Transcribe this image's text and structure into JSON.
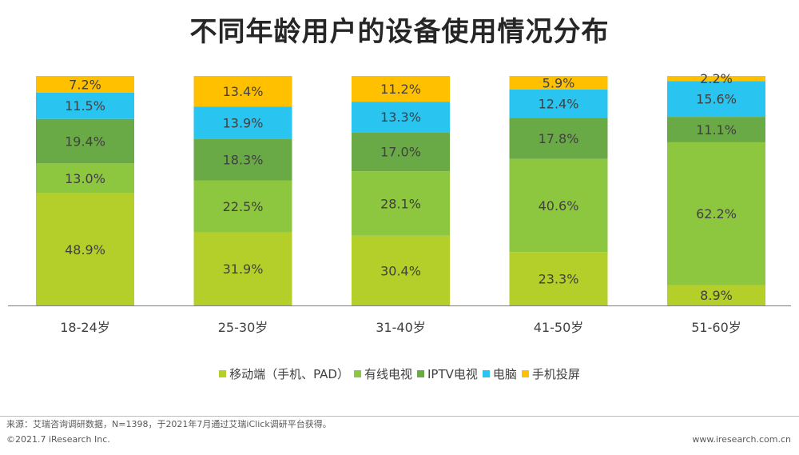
{
  "title": "不同年龄用户的设备使用情况分布",
  "chart_data": {
    "type": "bar",
    "stacked": true,
    "percent": true,
    "categories": [
      "18-24岁",
      "25-30岁",
      "31-40岁",
      "41-50岁",
      "51-60岁"
    ],
    "series": [
      {
        "name": "移动端（手机、PAD）",
        "color": "#b5cf2a",
        "values": [
          48.9,
          31.9,
          30.4,
          23.3,
          8.9
        ]
      },
      {
        "name": "有线电视",
        "color": "#8dc63f",
        "values": [
          13.0,
          22.5,
          28.1,
          40.6,
          62.2
        ]
      },
      {
        "name": "IPTV电视",
        "color": "#6aaa46",
        "values": [
          19.4,
          18.3,
          17.0,
          17.8,
          11.1
        ]
      },
      {
        "name": "电脑",
        "color": "#29c4ef",
        "values": [
          11.5,
          13.9,
          13.3,
          12.4,
          15.6
        ]
      },
      {
        "name": "手机投屏",
        "color": "#ffc000",
        "values": [
          7.2,
          13.4,
          11.2,
          5.9,
          2.2
        ]
      }
    ],
    "labels": [
      [
        "48.9%",
        "31.9%",
        "30.4%",
        "23.3%",
        "8.9%"
      ],
      [
        "13.0%",
        "22.5%",
        "28.1%",
        "40.6%",
        "62.2%"
      ],
      [
        "19.4%",
        "18.3%",
        "17.0%",
        "17.8%",
        "11.1%"
      ],
      [
        "11.5%",
        "13.9%",
        "13.3%",
        "12.4%",
        "15.6%"
      ],
      [
        "7.2%",
        "13.4%",
        "11.2%",
        "5.9%",
        "2.2%"
      ]
    ],
    "ylim": [
      0,
      100
    ],
    "legend_position": "bottom",
    "grid": false
  },
  "footer": {
    "source": "来源：艾瑞咨询调研数据，N=1398，于2021年7月通过艾瑞iClick调研平台获得。",
    "copyright": "©2021.7 iResearch Inc.",
    "website": "www.iresearch.com.cn"
  }
}
